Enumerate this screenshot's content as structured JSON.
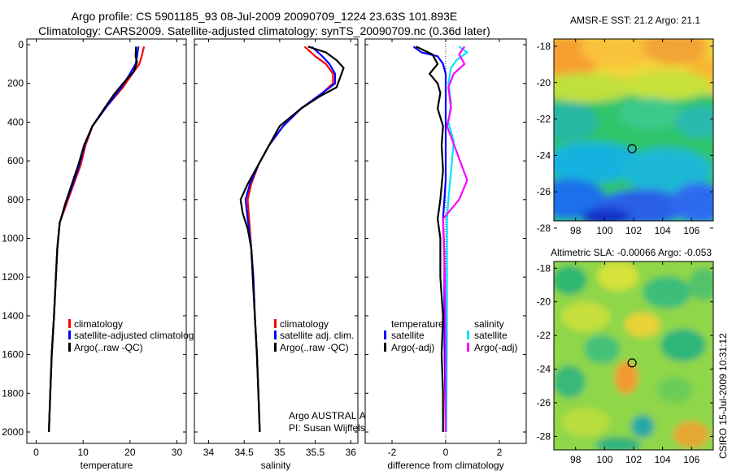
{
  "title": {
    "line1": "Argo profile: CS 5901185_93 08-Jul-2009 20090709_1224 23.63S 101.893E",
    "line2": "Climatology: CARS2009. Satellite-adjusted climatology: synTS_20090709.nc (0.36d later)"
  },
  "colors": {
    "climatology": "#ff0000",
    "satellite": "#0000ff",
    "argo": "#000000",
    "sal_satellite": "#00e5ff",
    "sal_argo": "#ff00ff"
  },
  "chart_data": [
    {
      "id": "temperature-panel",
      "type": "line",
      "xlabel": "temperature",
      "ylabel": "",
      "xlim": [
        -2,
        32
      ],
      "ylim": [
        2080,
        0
      ],
      "xticks": [
        "0",
        "10",
        "20",
        "30"
      ],
      "xtick_values": [
        0,
        10,
        20,
        30
      ],
      "yticks": [
        "0",
        "200",
        "400",
        "600",
        "800",
        "1000",
        "1200",
        "1400",
        "1600",
        "1800",
        "2000"
      ],
      "ytick_values": [
        0,
        200,
        400,
        600,
        800,
        1000,
        1200,
        1400,
        1600,
        1800,
        2000
      ],
      "legend": [
        "climatology",
        "satellite-adjusted climatology",
        "Argo(..raw -QC)"
      ],
      "series": [
        {
          "name": "climatology",
          "color": "#ff0000",
          "points": [
            [
              23,
              10
            ],
            [
              22.5,
              60
            ],
            [
              22,
              100
            ],
            [
              20.5,
              150
            ],
            [
              18.5,
              220
            ],
            [
              15,
              320
            ],
            [
              12,
              420
            ],
            [
              10.5,
              520
            ],
            [
              9.5,
              620
            ],
            [
              8,
              720
            ],
            [
              6.5,
              820
            ],
            [
              5,
              920
            ],
            [
              4.5,
              1050
            ],
            [
              4.2,
              1200
            ],
            [
              3.8,
              1400
            ],
            [
              3.3,
              1600
            ],
            [
              3,
              1800
            ],
            [
              2.7,
              2000
            ]
          ]
        },
        {
          "name": "satellite-adjusted climatology",
          "color": "#0000ff",
          "points": [
            [
              21.8,
              10
            ],
            [
              21.5,
              60
            ],
            [
              21.2,
              100
            ],
            [
              20,
              150
            ],
            [
              18.2,
              220
            ],
            [
              15,
              320
            ],
            [
              12,
              420
            ],
            [
              10.3,
              520
            ],
            [
              9.2,
              620
            ],
            [
              7.8,
              720
            ],
            [
              6.3,
              820
            ],
            [
              5,
              920
            ],
            [
              4.5,
              1050
            ],
            [
              4.2,
              1200
            ],
            [
              3.8,
              1400
            ],
            [
              3.3,
              1600
            ],
            [
              3,
              1800
            ],
            [
              2.7,
              2000
            ]
          ]
        },
        {
          "name": "Argo(..raw -QC)",
          "color": "#000000",
          "points": [
            [
              21.3,
              10
            ],
            [
              21.2,
              60
            ],
            [
              21.5,
              90
            ],
            [
              20.8,
              140
            ],
            [
              18.5,
              200
            ],
            [
              16.5,
              260
            ],
            [
              14.8,
              320
            ],
            [
              12,
              420
            ],
            [
              10.2,
              520
            ],
            [
              9,
              620
            ],
            [
              7.6,
              720
            ],
            [
              6.2,
              820
            ],
            [
              5,
              920
            ],
            [
              4.5,
              1050
            ],
            [
              4.2,
              1200
            ],
            [
              3.8,
              1400
            ],
            [
              3.3,
              1600
            ],
            [
              3,
              1800
            ],
            [
              2.7,
              2000
            ]
          ]
        }
      ]
    },
    {
      "id": "salinity-panel",
      "type": "line",
      "xlabel": "salinity",
      "xlim": [
        33.8,
        36.1
      ],
      "ylim": [
        2080,
        0
      ],
      "xticks": [
        "34",
        "34.5",
        "35",
        "35.5",
        "36"
      ],
      "xtick_values": [
        34,
        34.5,
        35,
        35.5,
        36
      ],
      "legend": [
        "climatology",
        "satellite adj. clim.",
        "Argo(..raw -QC)"
      ],
      "annotation": [
        "Argo AUSTRALIA",
        "PI: Susan Wijffels"
      ],
      "series": [
        {
          "name": "climatology",
          "color": "#ff0000",
          "points": [
            [
              35.35,
              10
            ],
            [
              35.5,
              60
            ],
            [
              35.65,
              100
            ],
            [
              35.75,
              150
            ],
            [
              35.75,
              200
            ],
            [
              35.6,
              250
            ],
            [
              35.3,
              330
            ],
            [
              35.05,
              420
            ],
            [
              34.85,
              520
            ],
            [
              34.7,
              620
            ],
            [
              34.6,
              720
            ],
            [
              34.55,
              800
            ],
            [
              34.57,
              900
            ],
            [
              34.6,
              1050
            ],
            [
              34.63,
              1200
            ],
            [
              34.65,
              1400
            ],
            [
              34.68,
              1600
            ],
            [
              34.7,
              1800
            ],
            [
              34.72,
              2000
            ]
          ]
        },
        {
          "name": "satellite adj. clim.",
          "color": "#0000ff",
          "points": [
            [
              35.45,
              10
            ],
            [
              35.6,
              60
            ],
            [
              35.7,
              100
            ],
            [
              35.78,
              150
            ],
            [
              35.78,
              200
            ],
            [
              35.6,
              250
            ],
            [
              35.3,
              330
            ],
            [
              35.05,
              420
            ],
            [
              34.85,
              520
            ],
            [
              34.7,
              620
            ],
            [
              34.58,
              720
            ],
            [
              34.52,
              800
            ],
            [
              34.55,
              900
            ],
            [
              34.6,
              1050
            ],
            [
              34.63,
              1200
            ],
            [
              34.65,
              1400
            ],
            [
              34.68,
              1600
            ],
            [
              34.7,
              1800
            ],
            [
              34.72,
              2000
            ]
          ]
        },
        {
          "name": "Argo(..raw -QC)",
          "color": "#000000",
          "points": [
            [
              35.4,
              10
            ],
            [
              35.65,
              40
            ],
            [
              35.8,
              80
            ],
            [
              35.9,
              120
            ],
            [
              35.85,
              170
            ],
            [
              35.8,
              220
            ],
            [
              35.55,
              270
            ],
            [
              35.3,
              330
            ],
            [
              35,
              420
            ],
            [
              34.85,
              520
            ],
            [
              34.7,
              620
            ],
            [
              34.55,
              720
            ],
            [
              34.45,
              800
            ],
            [
              34.48,
              870
            ],
            [
              34.55,
              950
            ],
            [
              34.6,
              1050
            ],
            [
              34.62,
              1200
            ],
            [
              34.65,
              1400
            ],
            [
              34.68,
              1600
            ],
            [
              34.7,
              1800
            ],
            [
              34.72,
              2000
            ]
          ]
        }
      ]
    },
    {
      "id": "difference-panel",
      "type": "line",
      "xlabel": "difference from climatology",
      "xlim": [
        -3,
        3
      ],
      "ylim": [
        2080,
        0
      ],
      "xticks": [
        "-2",
        "0",
        "2"
      ],
      "xtick_values": [
        -2,
        0,
        2
      ],
      "legend_temperature": [
        "temperature",
        "satellite",
        "Argo(-adj)"
      ],
      "legend_salinity": [
        "salinity",
        "satellite",
        "Argo(-adj)"
      ],
      "series": [
        {
          "name": "temperature satellite",
          "color": "#0000ff",
          "points": [
            [
              -1.2,
              10
            ],
            [
              -0.9,
              40
            ],
            [
              -0.3,
              60
            ],
            [
              -0.1,
              100
            ],
            [
              0,
              150
            ],
            [
              0,
              300
            ],
            [
              0,
              500
            ],
            [
              0,
              700
            ],
            [
              -0.1,
              900
            ],
            [
              -0.05,
              1100
            ],
            [
              -0.05,
              1500
            ],
            [
              0,
              2000
            ]
          ]
        },
        {
          "name": "temperature Argo(-adj)",
          "color": "#000000",
          "points": [
            [
              -1.1,
              10
            ],
            [
              -0.5,
              50
            ],
            [
              -0.3,
              100
            ],
            [
              -0.6,
              150
            ],
            [
              -0.3,
              200
            ],
            [
              -0.2,
              250
            ],
            [
              -0.3,
              330
            ],
            [
              -0.1,
              420
            ],
            [
              -0.15,
              520
            ],
            [
              -0.1,
              650
            ],
            [
              -0.2,
              800
            ],
            [
              -0.3,
              900
            ],
            [
              -0.2,
              1000
            ],
            [
              -0.2,
              1200
            ],
            [
              -0.1,
              1400
            ],
            [
              -0.15,
              1600
            ],
            [
              -0.1,
              1800
            ],
            [
              -0.1,
              2000
            ]
          ]
        },
        {
          "name": "salinity satellite",
          "color": "#00e5ff",
          "points": [
            [
              0.5,
              10
            ],
            [
              0.8,
              40
            ],
            [
              0.4,
              80
            ],
            [
              0.2,
              120
            ],
            [
              0.1,
              200
            ],
            [
              0.2,
              300
            ],
            [
              0.1,
              400
            ],
            [
              0.3,
              500
            ],
            [
              0.2,
              650
            ],
            [
              0.1,
              800
            ],
            [
              0.05,
              900
            ],
            [
              0.05,
              1200
            ],
            [
              0.05,
              1500
            ],
            [
              0.02,
              2000
            ]
          ]
        },
        {
          "name": "salinity Argo(-adj)",
          "color": "#ff00ff",
          "points": [
            [
              0.7,
              10
            ],
            [
              0.5,
              50
            ],
            [
              0.7,
              100
            ],
            [
              0.3,
              150
            ],
            [
              0.1,
              220
            ],
            [
              0.2,
              330
            ],
            [
              0.05,
              420
            ],
            [
              0.4,
              550
            ],
            [
              0.8,
              700
            ],
            [
              0.5,
              800
            ],
            [
              -0.1,
              900
            ],
            [
              -0.05,
              1100
            ],
            [
              -0.02,
              1300
            ],
            [
              0,
              1600
            ],
            [
              0,
              2000
            ]
          ]
        }
      ]
    }
  ],
  "maps": [
    {
      "id": "sst-map",
      "title": "AMSR-E SST: 21.2 Argo: 21.1",
      "xticks": [
        "98",
        "100",
        "102",
        "104",
        "106"
      ],
      "yticks": [
        "-18",
        "-20",
        "-22",
        "-24",
        "-26",
        "-28"
      ],
      "xlim": [
        96.5,
        107.5
      ],
      "ylim": [
        -27.6,
        -17.6
      ],
      "marker": [
        101.893,
        -23.63
      ]
    },
    {
      "id": "sla-map",
      "title": "Altimetric SLA: -0.00066 Argo: -0.053",
      "xticks": [
        "98",
        "100",
        "102",
        "104",
        "106"
      ],
      "yticks": [
        "-18",
        "-20",
        "-22",
        "-24",
        "-26",
        "-28"
      ],
      "xlim": [
        96.5,
        107.5
      ],
      "ylim": [
        -28.8,
        -17.6
      ],
      "marker": [
        101.893,
        -23.63
      ]
    }
  ],
  "footer": "CSIRO 15-Jul-2009 10:31:12"
}
